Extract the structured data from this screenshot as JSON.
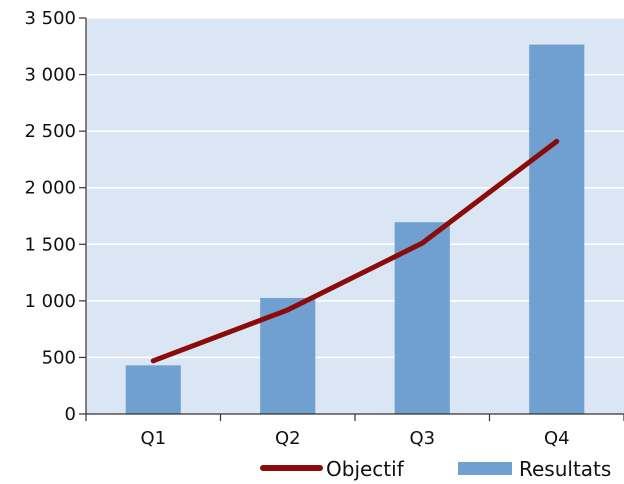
{
  "chart_data": {
    "type": "bar",
    "categories": [
      "Q1",
      "Q2",
      "Q3",
      "Q4"
    ],
    "series": [
      {
        "name": "Resultats",
        "type": "bar",
        "color": "#6fa0d0",
        "values": [
          430,
          1025,
          1695,
          3265
        ]
      },
      {
        "name": "Objectif",
        "type": "line",
        "color": "#8b0a0a",
        "values": [
          470,
          920,
          1510,
          2410
        ]
      }
    ],
    "ylim": [
      0,
      3500
    ],
    "yticks": [
      0,
      500,
      1000,
      1500,
      2000,
      2500,
      3000,
      3500
    ],
    "ytick_labels": [
      "0",
      "500",
      "1 000",
      "1 500",
      "2 000",
      "2 500",
      "3 000",
      "3 500"
    ],
    "grid": true,
    "plot_background": "#dbe6f4",
    "legend_position": "bottom-right"
  }
}
